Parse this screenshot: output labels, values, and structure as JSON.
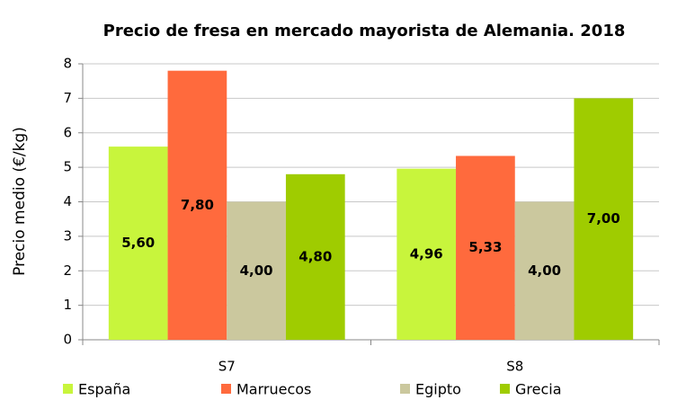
{
  "chart_data": {
    "type": "bar",
    "title": "Precio de fresa en mercado mayorista de Alemania. 2018",
    "y_label": "Precio medio (€/kg)",
    "categories": [
      "S7",
      "S8"
    ],
    "series": [
      {
        "name": "España",
        "color": "#c8f53c",
        "values": [
          5.6,
          4.96
        ],
        "value_labels": [
          "5,60",
          "4,96"
        ]
      },
      {
        "name": "Marruecos",
        "color": "#ff6a3d",
        "values": [
          7.8,
          5.33
        ],
        "value_labels": [
          "7,80",
          "5,33"
        ]
      },
      {
        "name": "Egipto",
        "color": "#cbc89e",
        "values": [
          4.0,
          4.0
        ],
        "value_labels": [
          "4,00",
          "4,00"
        ]
      },
      {
        "name": "Grecia",
        "color": "#9fcc00",
        "values": [
          4.8,
          7.0
        ],
        "value_labels": [
          "4,80",
          "7,00"
        ]
      }
    ],
    "ylim": [
      0,
      8
    ],
    "yticks": [
      0,
      1,
      2,
      3,
      4,
      5,
      6,
      7,
      8
    ],
    "grid": true,
    "legend": "bottom"
  }
}
